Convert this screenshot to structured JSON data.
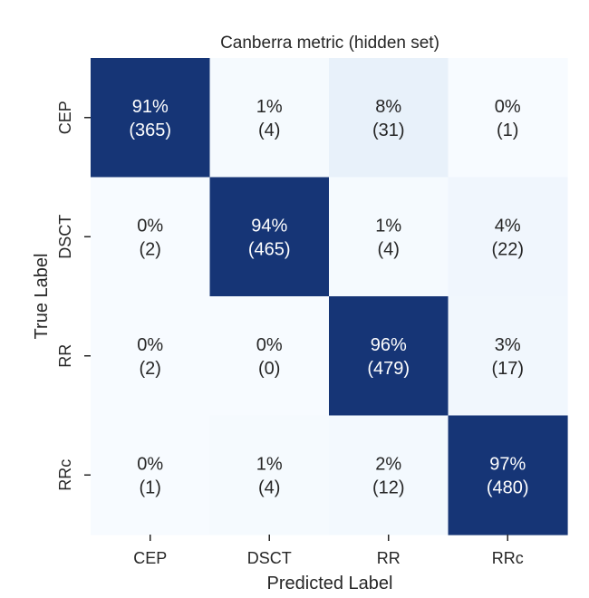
{
  "chart_data": {
    "type": "heatmap",
    "title": "Canberra metric (hidden set)",
    "xlabel": "Predicted Label",
    "ylabel": "True Label",
    "x_categories": [
      "CEP",
      "DSCT",
      "RR",
      "RRc"
    ],
    "y_categories": [
      "CEP",
      "DSCT",
      "RR",
      "RRc"
    ],
    "percent": [
      [
        91,
        1,
        8,
        0
      ],
      [
        0,
        94,
        1,
        4
      ],
      [
        0,
        0,
        96,
        3
      ],
      [
        0,
        1,
        2,
        97
      ]
    ],
    "counts": [
      [
        365,
        4,
        31,
        1
      ],
      [
        2,
        465,
        4,
        22
      ],
      [
        2,
        0,
        479,
        17
      ],
      [
        1,
        4,
        12,
        480
      ]
    ],
    "colormap": "Blues",
    "colorbar": false,
    "grid": false
  }
}
